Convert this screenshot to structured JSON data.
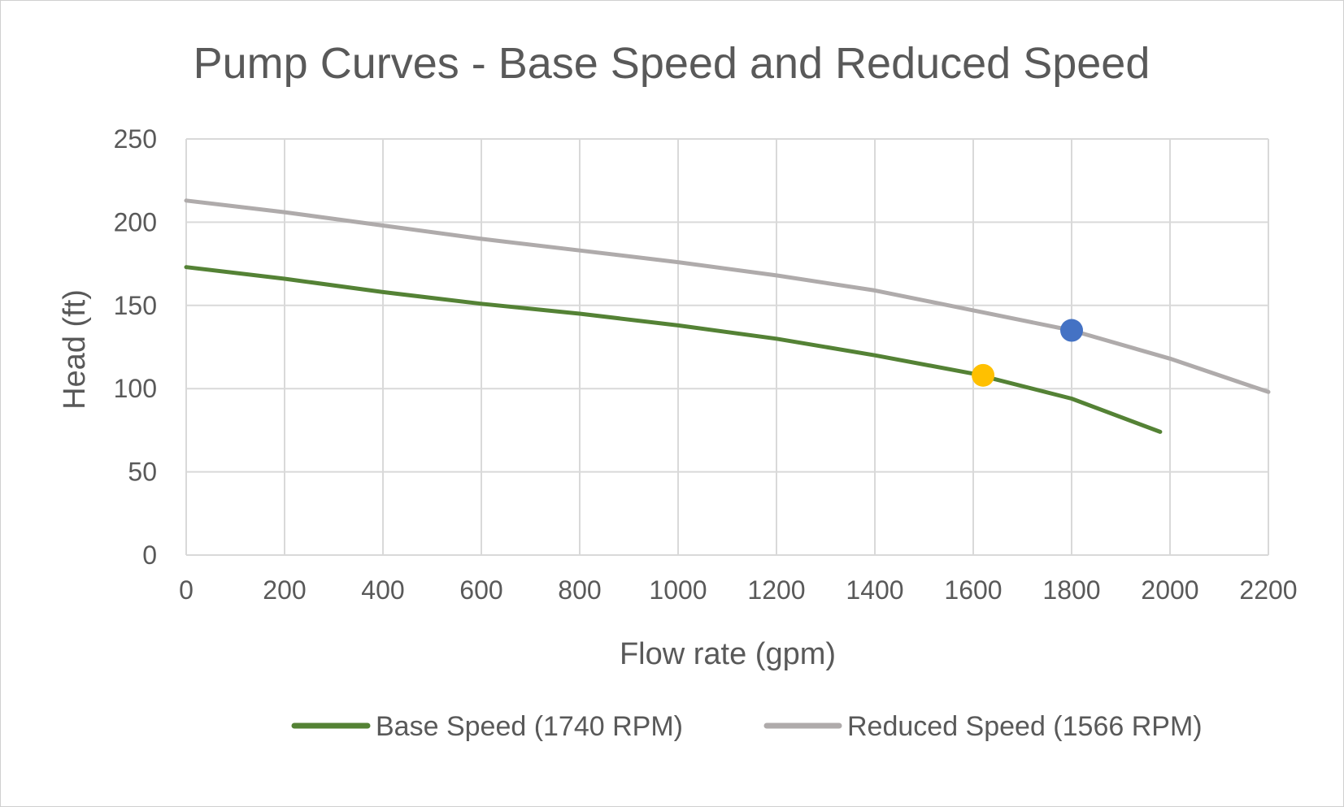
{
  "chart_data": {
    "type": "line",
    "title": "Pump Curves - Base Speed and Reduced Speed",
    "xlabel": "Flow rate (gpm)",
    "ylabel": "Head (ft)",
    "xlim": [
      0,
      2200
    ],
    "ylim": [
      0,
      250
    ],
    "x_ticks": [
      0,
      200,
      400,
      600,
      800,
      1000,
      1200,
      1400,
      1600,
      1800,
      2000,
      2200
    ],
    "y_ticks": [
      0,
      50,
      100,
      150,
      200,
      250
    ],
    "grid": true,
    "legend_position": "bottom",
    "series": [
      {
        "name": "Base Speed (1740 RPM)",
        "color": "#548235",
        "x": [
          0,
          200,
          400,
          600,
          800,
          1000,
          1200,
          1400,
          1600,
          1800,
          1980
        ],
        "y": [
          173,
          166,
          158,
          151,
          145,
          138,
          130,
          120,
          109,
          94,
          74
        ]
      },
      {
        "name": "Reduced Speed (1566 RPM)",
        "color": "#afabab",
        "x": [
          0,
          200,
          400,
          600,
          800,
          1000,
          1200,
          1400,
          1600,
          1800,
          2000,
          2200
        ],
        "y": [
          213,
          206,
          198,
          190,
          183,
          176,
          168,
          159,
          147,
          135,
          118,
          98
        ]
      }
    ],
    "points": [
      {
        "x": 1620,
        "y": 108,
        "color": "#ffc000"
      },
      {
        "x": 1800,
        "y": 135,
        "color": "#4472c4"
      }
    ]
  }
}
